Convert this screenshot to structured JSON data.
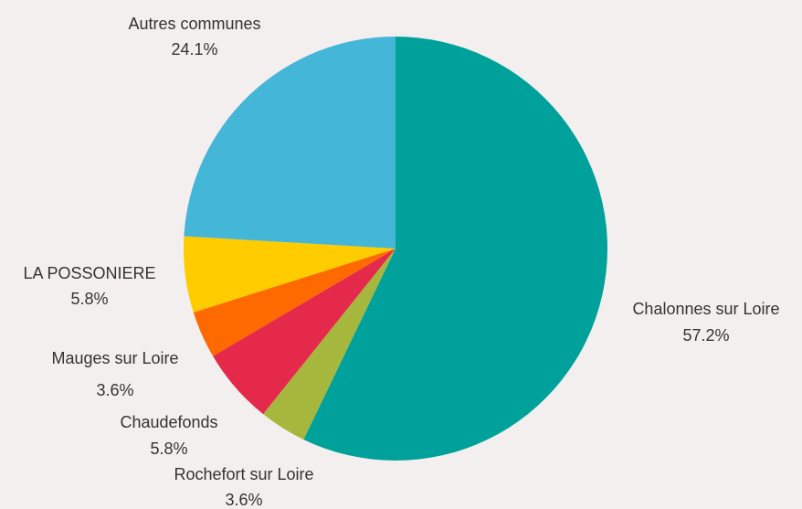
{
  "chart_data": {
    "type": "pie",
    "categories": [
      "Chalonnes sur Loire",
      "Rochefort sur Loire",
      "Chaudefonds",
      "Mauges sur Loire",
      "LA POSSONIERE",
      "Autres communes"
    ],
    "values": [
      57.2,
      3.6,
      5.8,
      3.6,
      5.8,
      24.1
    ],
    "value_labels": [
      "57.2%",
      "3.6%",
      "5.8%",
      "3.6%",
      "5.8%",
      "24.1%"
    ],
    "colors": [
      "#00a19a",
      "#a5b83d",
      "#e5294b",
      "#ff6a00",
      "#ffcc00",
      "#44b6d8"
    ]
  }
}
